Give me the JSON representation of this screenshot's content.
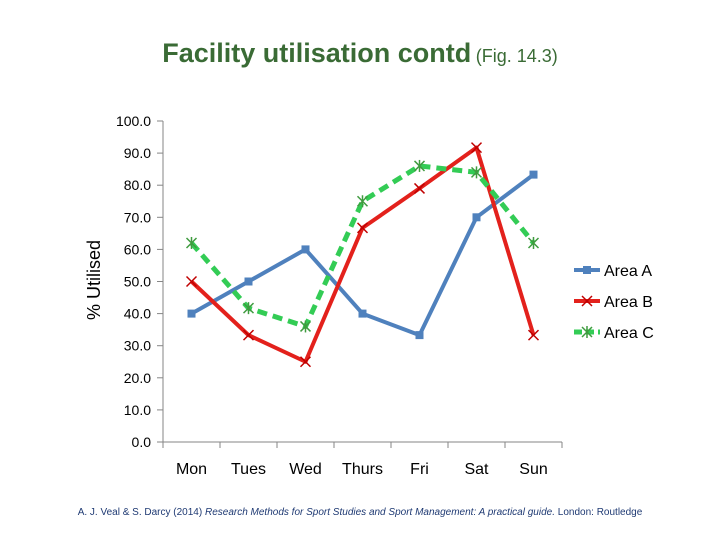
{
  "title": {
    "main": "Facility utilisation contd",
    "sub": "(Fig. 14.3)"
  },
  "citation": {
    "authors": "A. J. Veal & S. Darcy (2014)",
    "book": "Research Methods for Sport Studies and Sport Management: A practical guide.",
    "publisher": "London: Routledge"
  },
  "chart_data": {
    "type": "line",
    "title": "",
    "xlabel": "",
    "ylabel": "% Utilised",
    "ylim": [
      0,
      100
    ],
    "ytick_step": 10,
    "ytick_labels": [
      "0.0",
      "10.0",
      "20.0",
      "30.0",
      "40.0",
      "50.0",
      "60.0",
      "70.0",
      "80.0",
      "90.0",
      "100.0"
    ],
    "categories": [
      "Mon",
      "Tues",
      "Wed",
      "Thurs",
      "Fri",
      "Sat",
      "Sun"
    ],
    "grid": false,
    "legend_position": "right",
    "series": [
      {
        "name": "Area A",
        "color": "#4f81bd",
        "marker": "square",
        "dashed": false,
        "values": [
          40,
          50,
          60,
          40,
          33.3,
          70,
          83.3
        ]
      },
      {
        "name": "Area B",
        "color": "#e3211c",
        "marker": "x",
        "dashed": false,
        "values": [
          50,
          33.3,
          25,
          66.7,
          79,
          91.7,
          33.3
        ]
      },
      {
        "name": "Area C",
        "color": "#33cc55",
        "marker": "star",
        "dashed": true,
        "values": [
          62,
          41.7,
          36,
          75,
          86,
          84,
          62
        ]
      }
    ]
  }
}
